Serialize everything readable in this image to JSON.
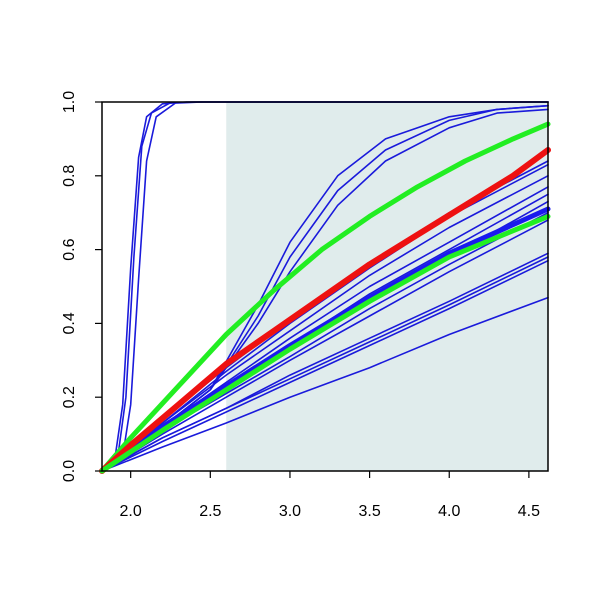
{
  "chart_data": {
    "type": "line",
    "title": "",
    "xlabel": "",
    "ylabel": "",
    "xlim": [
      1.82,
      4.62
    ],
    "ylim": [
      0.0,
      1.0
    ],
    "x_ticks": [
      "2.0",
      "2.5",
      "3.0",
      "3.5",
      "4.0",
      "4.5"
    ],
    "y_ticks": [
      "0.0",
      "0.2",
      "0.4",
      "0.6",
      "0.8",
      "1.0"
    ],
    "grid": false,
    "legend": "none",
    "shaded_region": {
      "x_from": 2.6,
      "x_to": 4.62,
      "color": "#e0ecec"
    },
    "colors": {
      "thin": "#1a1adb",
      "red": "#ee1111",
      "green": "#22ee22",
      "blue_thick": "#1a1aee"
    },
    "series": [
      {
        "style": "thin",
        "points": [
          [
            1.82,
            0
          ],
          [
            1.9,
            0.03
          ],
          [
            1.95,
            0.18
          ],
          [
            2.0,
            0.55
          ],
          [
            2.05,
            0.85
          ],
          [
            2.1,
            0.96
          ],
          [
            2.2,
            0.995
          ],
          [
            2.35,
            1.0
          ],
          [
            4.62,
            1.0
          ]
        ]
      },
      {
        "style": "thin",
        "points": [
          [
            1.82,
            0
          ],
          [
            1.92,
            0.04
          ],
          [
            1.97,
            0.2
          ],
          [
            2.02,
            0.58
          ],
          [
            2.07,
            0.88
          ],
          [
            2.13,
            0.97
          ],
          [
            2.25,
            0.998
          ],
          [
            2.4,
            1.0
          ],
          [
            4.62,
            1.0
          ]
        ]
      },
      {
        "style": "thin",
        "points": [
          [
            1.82,
            0
          ],
          [
            1.95,
            0.04
          ],
          [
            2.0,
            0.18
          ],
          [
            2.05,
            0.52
          ],
          [
            2.1,
            0.84
          ],
          [
            2.16,
            0.96
          ],
          [
            2.28,
            0.997
          ],
          [
            2.45,
            1.0
          ],
          [
            4.62,
            1.0
          ]
        ]
      },
      {
        "style": "thin",
        "points": [
          [
            1.82,
            0
          ],
          [
            2.0,
            0.06
          ],
          [
            2.2,
            0.12
          ],
          [
            2.5,
            0.22
          ],
          [
            2.8,
            0.45
          ],
          [
            3.0,
            0.62
          ],
          [
            3.3,
            0.8
          ],
          [
            3.6,
            0.9
          ],
          [
            4.0,
            0.96
          ],
          [
            4.3,
            0.98
          ],
          [
            4.62,
            0.99
          ]
        ]
      },
      {
        "style": "thin",
        "points": [
          [
            1.82,
            0
          ],
          [
            2.0,
            0.06
          ],
          [
            2.2,
            0.12
          ],
          [
            2.5,
            0.22
          ],
          [
            2.8,
            0.42
          ],
          [
            3.0,
            0.58
          ],
          [
            3.3,
            0.76
          ],
          [
            3.6,
            0.87
          ],
          [
            4.0,
            0.95
          ],
          [
            4.3,
            0.98
          ],
          [
            4.62,
            0.99
          ]
        ]
      },
      {
        "style": "thin",
        "points": [
          [
            1.82,
            0
          ],
          [
            2.0,
            0.06
          ],
          [
            2.2,
            0.12
          ],
          [
            2.5,
            0.22
          ],
          [
            2.8,
            0.4
          ],
          [
            3.0,
            0.54
          ],
          [
            3.3,
            0.72
          ],
          [
            3.6,
            0.84
          ],
          [
            4.0,
            0.93
          ],
          [
            4.3,
            0.97
          ],
          [
            4.62,
            0.98
          ]
        ]
      },
      {
        "style": "thin",
        "points": [
          [
            1.82,
            0
          ],
          [
            2.2,
            0.14
          ],
          [
            2.6,
            0.28
          ],
          [
            3.0,
            0.41
          ],
          [
            3.5,
            0.56
          ],
          [
            4.0,
            0.7
          ],
          [
            4.62,
            0.84
          ]
        ]
      },
      {
        "style": "thin",
        "points": [
          [
            1.82,
            0
          ],
          [
            2.2,
            0.13
          ],
          [
            2.6,
            0.27
          ],
          [
            3.0,
            0.4
          ],
          [
            3.5,
            0.55
          ],
          [
            4.0,
            0.69
          ],
          [
            4.62,
            0.83
          ]
        ]
      },
      {
        "style": "thin",
        "points": [
          [
            1.82,
            0
          ],
          [
            2.2,
            0.13
          ],
          [
            2.6,
            0.26
          ],
          [
            3.0,
            0.38
          ],
          [
            3.5,
            0.53
          ],
          [
            4.0,
            0.66
          ],
          [
            4.62,
            0.8
          ]
        ]
      },
      {
        "style": "thin",
        "points": [
          [
            1.82,
            0
          ],
          [
            2.2,
            0.12
          ],
          [
            2.6,
            0.24
          ],
          [
            3.0,
            0.36
          ],
          [
            3.5,
            0.5
          ],
          [
            4.0,
            0.62
          ],
          [
            4.62,
            0.77
          ]
        ]
      },
      {
        "style": "thin",
        "points": [
          [
            1.82,
            0
          ],
          [
            2.2,
            0.12
          ],
          [
            2.6,
            0.23
          ],
          [
            3.0,
            0.34
          ],
          [
            3.5,
            0.48
          ],
          [
            4.0,
            0.6
          ],
          [
            4.62,
            0.75
          ]
        ]
      },
      {
        "style": "thin",
        "points": [
          [
            1.82,
            0
          ],
          [
            2.2,
            0.11
          ],
          [
            2.6,
            0.22
          ],
          [
            3.0,
            0.33
          ],
          [
            3.5,
            0.46
          ],
          [
            4.0,
            0.58
          ],
          [
            4.62,
            0.73
          ]
        ]
      },
      {
        "style": "thin",
        "points": [
          [
            1.82,
            0
          ],
          [
            2.2,
            0.11
          ],
          [
            2.6,
            0.21
          ],
          [
            3.0,
            0.31
          ],
          [
            3.5,
            0.44
          ],
          [
            4.0,
            0.56
          ],
          [
            4.62,
            0.7
          ]
        ]
      },
      {
        "style": "thin",
        "points": [
          [
            1.82,
            0
          ],
          [
            2.2,
            0.1
          ],
          [
            2.6,
            0.2
          ],
          [
            3.0,
            0.3
          ],
          [
            3.5,
            0.42
          ],
          [
            4.0,
            0.54
          ],
          [
            4.62,
            0.68
          ]
        ]
      },
      {
        "style": "thin",
        "points": [
          [
            1.82,
            0
          ],
          [
            2.2,
            0.09
          ],
          [
            2.6,
            0.17
          ],
          [
            3.0,
            0.26
          ],
          [
            3.5,
            0.36
          ],
          [
            4.0,
            0.46
          ],
          [
            4.62,
            0.59
          ]
        ]
      },
      {
        "style": "thin",
        "points": [
          [
            1.82,
            0
          ],
          [
            2.2,
            0.09
          ],
          [
            2.6,
            0.17
          ],
          [
            3.0,
            0.25
          ],
          [
            3.5,
            0.35
          ],
          [
            4.0,
            0.45
          ],
          [
            4.62,
            0.58
          ]
        ]
      },
      {
        "style": "thin",
        "points": [
          [
            1.82,
            0
          ],
          [
            2.2,
            0.08
          ],
          [
            2.6,
            0.16
          ],
          [
            3.0,
            0.24
          ],
          [
            3.5,
            0.34
          ],
          [
            4.0,
            0.44
          ],
          [
            4.62,
            0.57
          ]
        ]
      },
      {
        "style": "thin",
        "points": [
          [
            1.82,
            0
          ],
          [
            2.2,
            0.065
          ],
          [
            2.6,
            0.13
          ],
          [
            3.0,
            0.2
          ],
          [
            3.5,
            0.28
          ],
          [
            4.0,
            0.37
          ],
          [
            4.62,
            0.47
          ]
        ]
      },
      {
        "style": "blue_thick",
        "points": [
          [
            1.82,
            0
          ],
          [
            2.2,
            0.12
          ],
          [
            2.6,
            0.23
          ],
          [
            3.0,
            0.34
          ],
          [
            3.5,
            0.47
          ],
          [
            4.0,
            0.59
          ],
          [
            4.62,
            0.71
          ]
        ]
      },
      {
        "style": "green",
        "points": [
          [
            1.82,
            0
          ],
          [
            2.0,
            0.09
          ],
          [
            2.3,
            0.23
          ],
          [
            2.6,
            0.37
          ],
          [
            2.9,
            0.49
          ],
          [
            3.2,
            0.6
          ],
          [
            3.5,
            0.69
          ],
          [
            3.8,
            0.77
          ],
          [
            4.1,
            0.84
          ],
          [
            4.4,
            0.9
          ],
          [
            4.62,
            0.94
          ]
        ]
      },
      {
        "style": "red",
        "points": [
          [
            1.82,
            0
          ],
          [
            2.0,
            0.07
          ],
          [
            2.3,
            0.18
          ],
          [
            2.6,
            0.29
          ],
          [
            2.9,
            0.38
          ],
          [
            3.2,
            0.47
          ],
          [
            3.5,
            0.56
          ],
          [
            3.8,
            0.64
          ],
          [
            4.1,
            0.72
          ],
          [
            4.4,
            0.8
          ],
          [
            4.62,
            0.87
          ]
        ]
      },
      {
        "style": "green",
        "points": [
          [
            1.82,
            0
          ],
          [
            2.2,
            0.11
          ],
          [
            2.6,
            0.22
          ],
          [
            3.0,
            0.33
          ],
          [
            3.5,
            0.46
          ],
          [
            4.0,
            0.58
          ],
          [
            4.62,
            0.69
          ]
        ]
      }
    ]
  }
}
